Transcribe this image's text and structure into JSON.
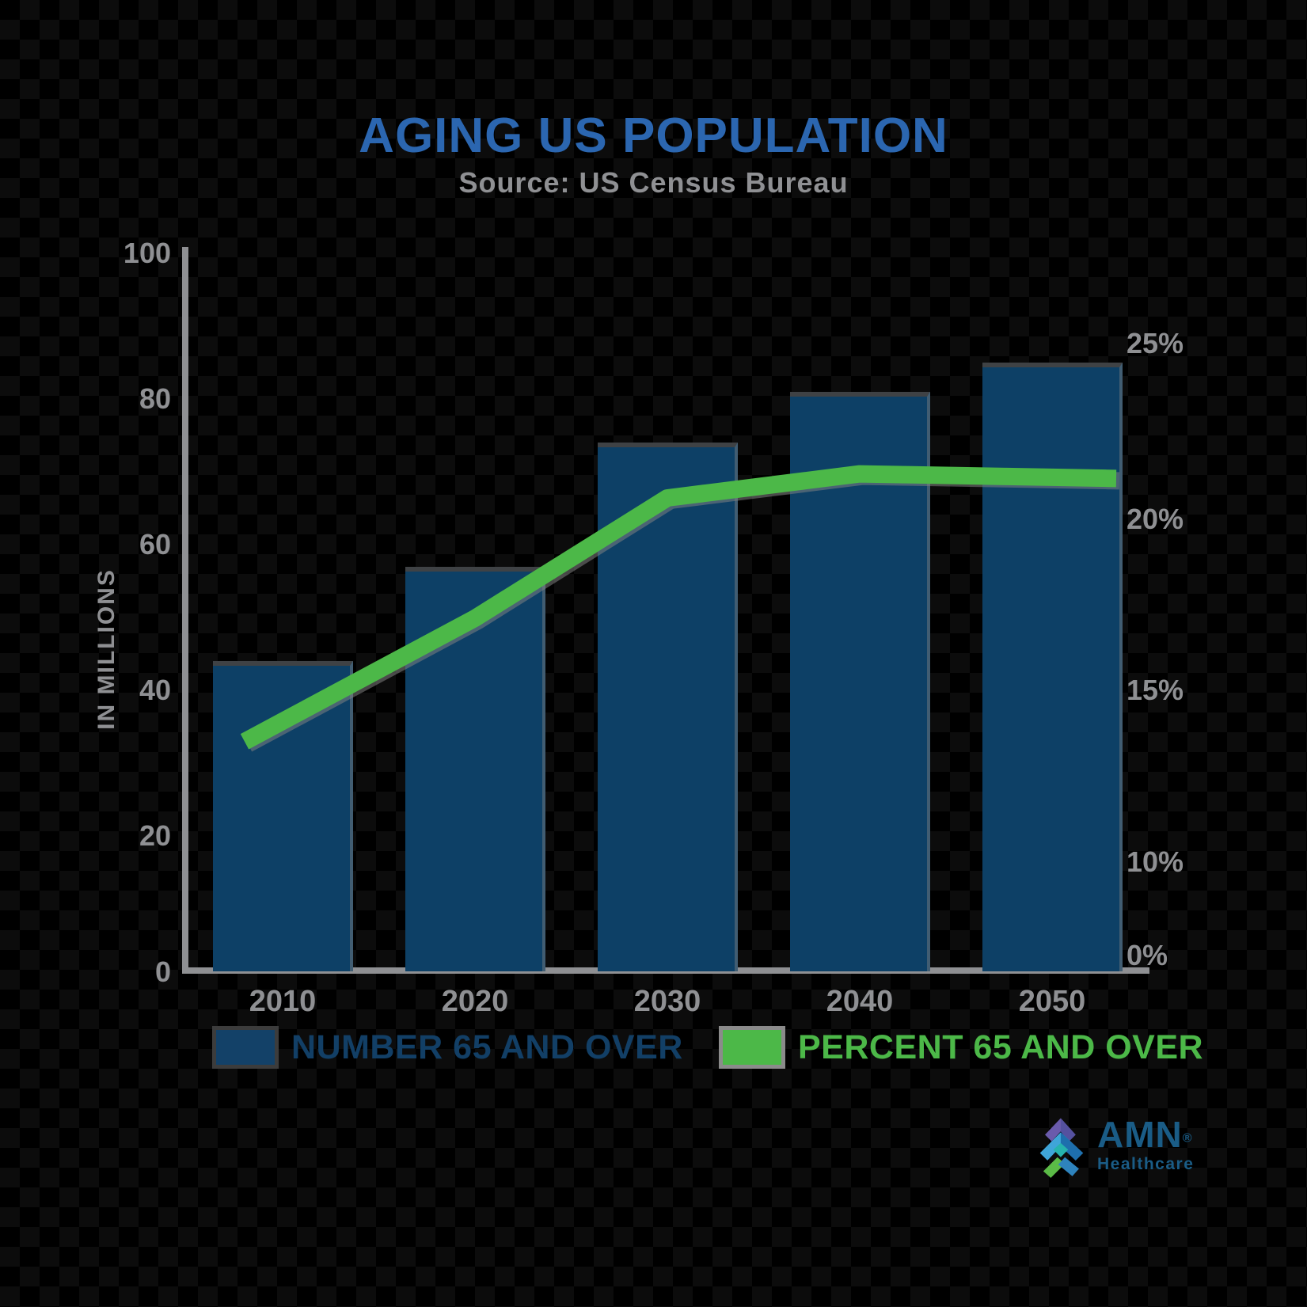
{
  "header": {
    "title": "AGING US POPULATION",
    "subtitle": "Source: US Census Bureau"
  },
  "chart_data": {
    "type": "combo",
    "title": "AGING US POPULATION",
    "subtitle": "Source: US Census Bureau",
    "categories": [
      "2010",
      "2020",
      "2030",
      "2040",
      "2050"
    ],
    "series": [
      {
        "name": "NUMBER 65 AND OVER",
        "type": "bar",
        "axis": "left",
        "unit": "millions",
        "color": "#0d4066",
        "values": [
          44,
          57,
          74,
          81,
          85
        ]
      },
      {
        "name": "PERCENT 65 AND OVER",
        "type": "line",
        "axis": "right",
        "unit": "percent",
        "color": "#4cb848",
        "values": [
          14.1,
          17.1,
          20.6,
          21.3,
          21.2
        ]
      }
    ],
    "y_axis_left": {
      "title": "IN MILLIONS",
      "ticks": [
        "100",
        "80",
        "60",
        "40",
        "20",
        "0"
      ],
      "range": [
        0,
        100
      ]
    },
    "y_axis_right": {
      "ticks": [
        "25%",
        "20%",
        "15%",
        "10%",
        "0%"
      ]
    },
    "grid": false,
    "legend_position": "bottom"
  },
  "legend": {
    "items": [
      {
        "label": "NUMBER 65 AND OVER",
        "color": "#134168"
      },
      {
        "label": "PERCENT 65 AND OVER",
        "color": "#4cb848"
      }
    ]
  },
  "logo": {
    "brand": "AMN",
    "reg": "®",
    "sub": "Healthcare"
  },
  "colors": {
    "title_blue": "#2b66b0",
    "bar_navy": "#0d4066",
    "line_green": "#4cb848",
    "axis_gray": "#8f9093",
    "background": "#000000"
  }
}
